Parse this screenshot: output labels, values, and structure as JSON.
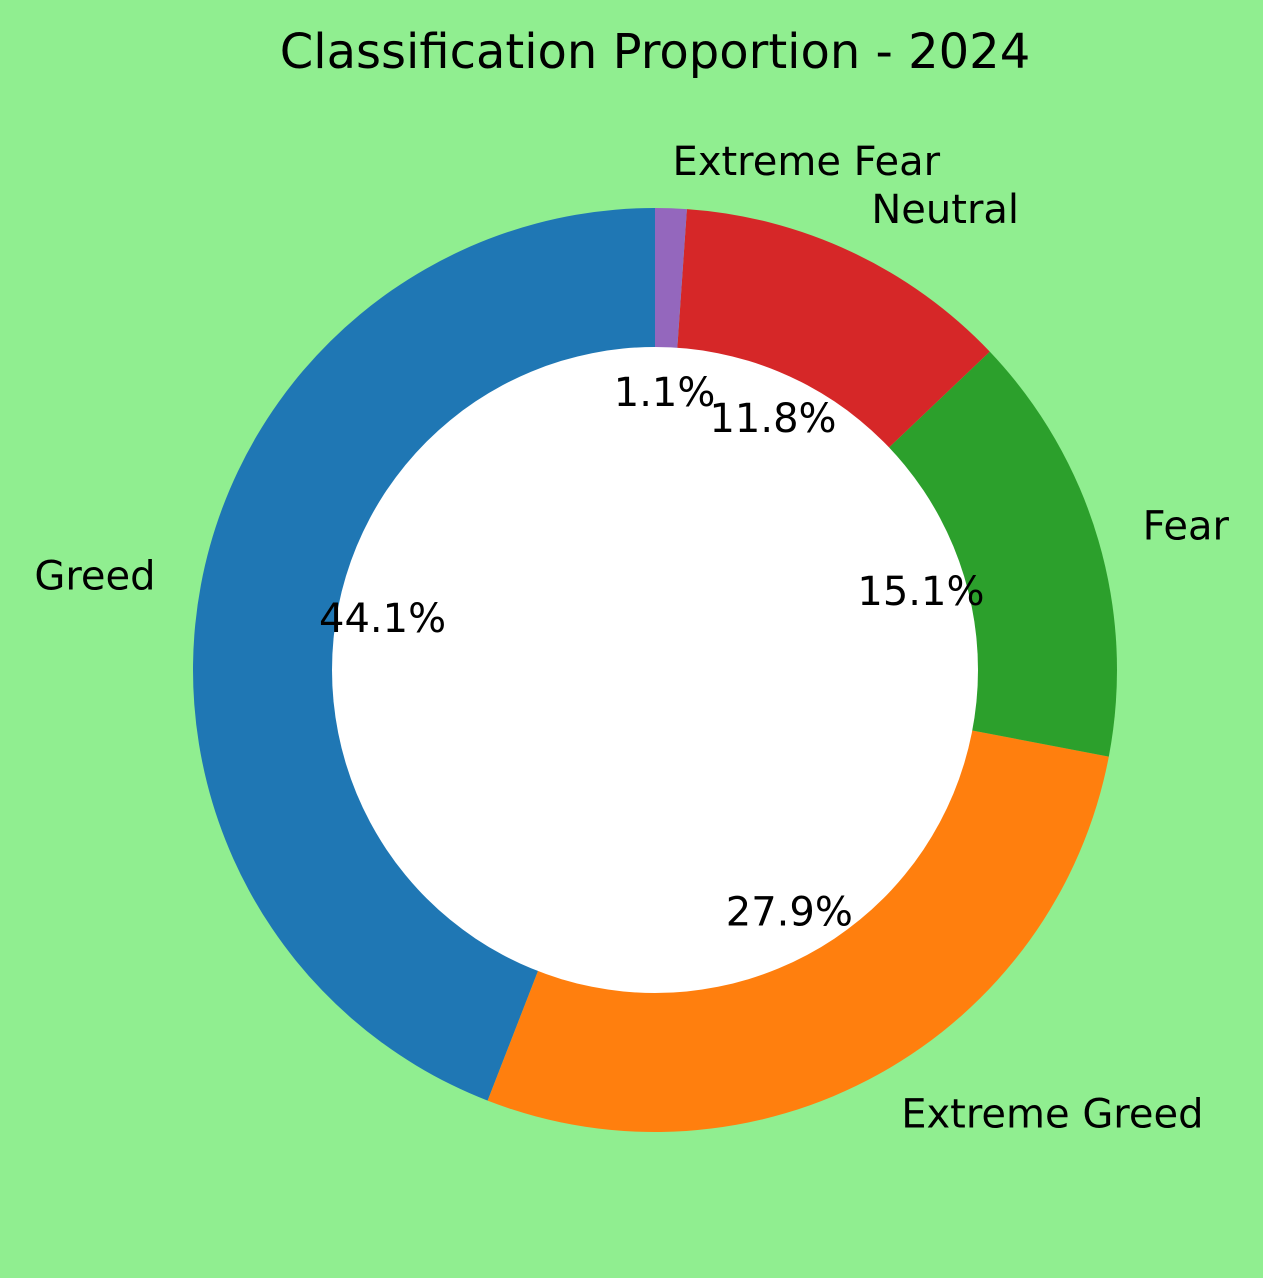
{
  "chart_data": {
    "type": "pie",
    "title": "Classification Proportion - 2024",
    "donut": true,
    "start_angle_deg": 90,
    "direction": "counterclockwise",
    "background_color": "#90ee90",
    "hole_color": "#ffffff",
    "slices": [
      {
        "label": "Greed",
        "value": 44.1,
        "pct_label": "44.1%",
        "color": "#1f77b4"
      },
      {
        "label": "Extreme Greed",
        "value": 27.9,
        "pct_label": "27.9%",
        "color": "#ff7f0e"
      },
      {
        "label": "Fear",
        "value": 15.1,
        "pct_label": "15.1%",
        "color": "#2ca02c"
      },
      {
        "label": "Neutral",
        "value": 11.8,
        "pct_label": "11.8%",
        "color": "#d62728"
      },
      {
        "label": "Extreme Fear",
        "value": 1.1,
        "pct_label": "1.1%",
        "color": "#9467bd"
      }
    ]
  }
}
